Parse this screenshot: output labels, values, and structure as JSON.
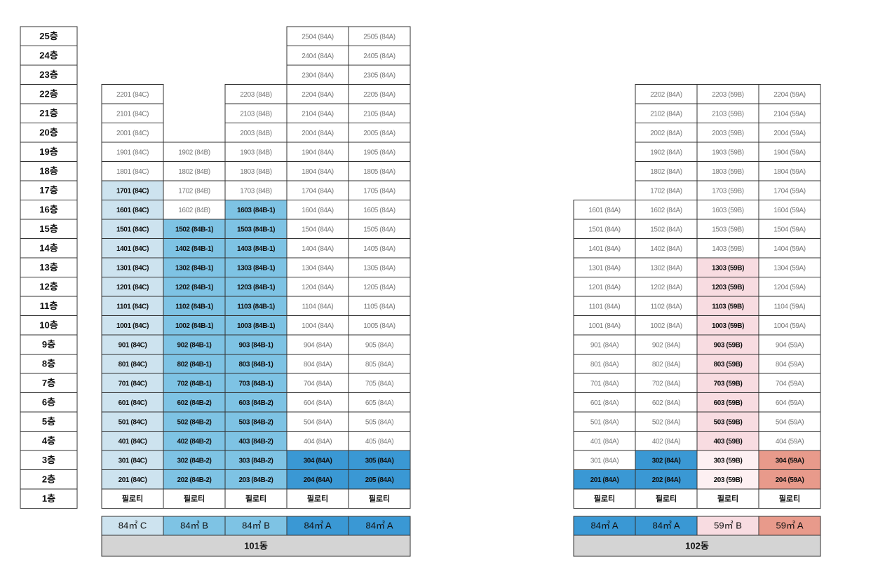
{
  "floors": [
    "25층",
    "24층",
    "23층",
    "22층",
    "21층",
    "20층",
    "19층",
    "18층",
    "17층",
    "16층",
    "15층",
    "14층",
    "13층",
    "12층",
    "11층",
    "10층",
    "9층",
    "8층",
    "7층",
    "6층",
    "5층",
    "4층",
    "3층",
    "2층",
    "1층"
  ],
  "buildings": [
    {
      "name": "101동",
      "columns": [
        {
          "type": {
            "text": "84㎡ C",
            "fill": "#cde3ef"
          },
          "cells": [
            {
              "text": "필로티"
            },
            {
              "text": "201 (84C)",
              "fill": "#cde3ef"
            },
            {
              "text": "301 (84C)",
              "fill": "#cde3ef"
            },
            {
              "text": "401 (84C)",
              "fill": "#cde3ef"
            },
            {
              "text": "501 (84C)",
              "fill": "#cde3ef"
            },
            {
              "text": "601 (84C)",
              "fill": "#cde3ef"
            },
            {
              "text": "701 (84C)",
              "fill": "#cde3ef"
            },
            {
              "text": "801 (84C)",
              "fill": "#cde3ef"
            },
            {
              "text": "901 (84C)",
              "fill": "#cde3ef"
            },
            {
              "text": "1001 (84C)",
              "fill": "#cde3ef"
            },
            {
              "text": "1101 (84C)",
              "fill": "#cde3ef"
            },
            {
              "text": "1201 (84C)",
              "fill": "#cde3ef"
            },
            {
              "text": "1301 (84C)",
              "fill": "#cde3ef"
            },
            {
              "text": "1401 (84C)",
              "fill": "#cde3ef"
            },
            {
              "text": "1501 (84C)",
              "fill": "#cde3ef"
            },
            {
              "text": "1601 (84C)",
              "fill": "#cde3ef"
            },
            {
              "text": "1701 (84C)",
              "fill": "#cde3ef"
            },
            {
              "text": "1801 (84C)"
            },
            {
              "text": "1901 (84C)"
            },
            {
              "text": "2001 (84C)"
            },
            {
              "text": "2101 (84C)"
            },
            {
              "text": "2201 (84C)"
            }
          ]
        },
        {
          "type": {
            "text": "84㎡ B",
            "fill": "#7ec3e4"
          },
          "cells": [
            {
              "text": "필로티"
            },
            {
              "text": "202 (84B-2)",
              "fill": "#7ec3e4"
            },
            {
              "text": "302 (84B-2)",
              "fill": "#7ec3e4"
            },
            {
              "text": "402 (84B-2)",
              "fill": "#7ec3e4"
            },
            {
              "text": "502 (84B-2)",
              "fill": "#7ec3e4"
            },
            {
              "text": "602 (84B-2)",
              "fill": "#7ec3e4"
            },
            {
              "text": "702 (84B-1)",
              "fill": "#7ec3e4"
            },
            {
              "text": "802 (84B-1)",
              "fill": "#7ec3e4"
            },
            {
              "text": "902 (84B-1)",
              "fill": "#7ec3e4"
            },
            {
              "text": "1002 (84B-1)",
              "fill": "#7ec3e4"
            },
            {
              "text": "1102 (84B-1)",
              "fill": "#7ec3e4"
            },
            {
              "text": "1202 (84B-1)",
              "fill": "#7ec3e4"
            },
            {
              "text": "1302 (84B-1)",
              "fill": "#7ec3e4"
            },
            {
              "text": "1402 (84B-1)",
              "fill": "#7ec3e4"
            },
            {
              "text": "1502 (84B-1)",
              "fill": "#7ec3e4"
            },
            {
              "text": "1602 (84B)"
            },
            {
              "text": "1702 (84B)"
            },
            {
              "text": "1802 (84B)"
            },
            {
              "text": "1902 (84B)"
            }
          ]
        },
        {
          "type": {
            "text": "84㎡ B",
            "fill": "#7ec3e4"
          },
          "cells": [
            {
              "text": "필로티"
            },
            {
              "text": "203 (84B-2)",
              "fill": "#7ec3e4"
            },
            {
              "text": "303 (84B-2)",
              "fill": "#7ec3e4"
            },
            {
              "text": "403 (84B-2)",
              "fill": "#7ec3e4"
            },
            {
              "text": "503 (84B-2)",
              "fill": "#7ec3e4"
            },
            {
              "text": "603 (84B-2)",
              "fill": "#7ec3e4"
            },
            {
              "text": "703 (84B-1)",
              "fill": "#7ec3e4"
            },
            {
              "text": "803 (84B-1)",
              "fill": "#7ec3e4"
            },
            {
              "text": "903 (84B-1)",
              "fill": "#7ec3e4"
            },
            {
              "text": "1003 (84B-1)",
              "fill": "#7ec3e4"
            },
            {
              "text": "1103 (84B-1)",
              "fill": "#7ec3e4"
            },
            {
              "text": "1203 (84B-1)",
              "fill": "#7ec3e4"
            },
            {
              "text": "1303 (84B-1)",
              "fill": "#7ec3e4"
            },
            {
              "text": "1403 (84B-1)",
              "fill": "#7ec3e4"
            },
            {
              "text": "1503 (84B-1)",
              "fill": "#7ec3e4"
            },
            {
              "text": "1603 (84B-1)",
              "fill": "#7ec3e4"
            },
            {
              "text": "1703 (84B)"
            },
            {
              "text": "1803 (84B)"
            },
            {
              "text": "1903 (84B)"
            },
            {
              "text": "2003 (84B)"
            },
            {
              "text": "2103 (84B)"
            },
            {
              "text": "2203 (84B)"
            }
          ]
        },
        {
          "type": {
            "text": "84㎡ A",
            "fill": "#3a98d4"
          },
          "cells": [
            {
              "text": "필로티"
            },
            {
              "text": "204 (84A)",
              "fill": "#3a98d4"
            },
            {
              "text": "304 (84A)",
              "fill": "#3a98d4"
            },
            {
              "text": "404 (84A)"
            },
            {
              "text": "504 (84A)"
            },
            {
              "text": "604 (84A)"
            },
            {
              "text": "704 (84A)"
            },
            {
              "text": "804 (84A)"
            },
            {
              "text": "904 (84A)"
            },
            {
              "text": "1004 (84A)"
            },
            {
              "text": "1104 (84A)"
            },
            {
              "text": "1204 (84A)"
            },
            {
              "text": "1304 (84A)"
            },
            {
              "text": "1404 (84A)"
            },
            {
              "text": "1504 (84A)"
            },
            {
              "text": "1604 (84A)"
            },
            {
              "text": "1704 (84A)"
            },
            {
              "text": "1804 (84A)"
            },
            {
              "text": "1904 (84A)"
            },
            {
              "text": "2004 (84A)"
            },
            {
              "text": "2104 (84A)"
            },
            {
              "text": "2204 (84A)"
            },
            {
              "text": "2304 (84A)"
            },
            {
              "text": "2404 (84A)"
            },
            {
              "text": "2504 (84A)"
            }
          ]
        },
        {
          "type": {
            "text": "84㎡ A",
            "fill": "#3a98d4"
          },
          "cells": [
            {
              "text": "필로티"
            },
            {
              "text": "205 (84A)",
              "fill": "#3a98d4"
            },
            {
              "text": "305 (84A)",
              "fill": "#3a98d4"
            },
            {
              "text": "405 (84A)"
            },
            {
              "text": "505 (84A)"
            },
            {
              "text": "605 (84A)"
            },
            {
              "text": "705 (84A)"
            },
            {
              "text": "805 (84A)"
            },
            {
              "text": "905 (84A)"
            },
            {
              "text": "1005 (84A)"
            },
            {
              "text": "1105 (84A)"
            },
            {
              "text": "1205 (84A)"
            },
            {
              "text": "1305 (84A)"
            },
            {
              "text": "1405 (84A)"
            },
            {
              "text": "1505 (84A)"
            },
            {
              "text": "1605 (84A)"
            },
            {
              "text": "1705 (84A)"
            },
            {
              "text": "1805 (84A)"
            },
            {
              "text": "1905 (84A)"
            },
            {
              "text": "2005 (84A)"
            },
            {
              "text": "2105 (84A)"
            },
            {
              "text": "2205 (84A)"
            },
            {
              "text": "2305 (84A)"
            },
            {
              "text": "2405 (84A)"
            },
            {
              "text": "2505 (84A)"
            }
          ]
        }
      ]
    },
    {
      "name": "102동",
      "columns": [
        {
          "type": {
            "text": "84㎡ A",
            "fill": "#3a98d4"
          },
          "cells": [
            {
              "text": "필로티"
            },
            {
              "text": "201 (84A)",
              "fill": "#3a98d4"
            },
            {
              "text": "301 (84A)"
            },
            {
              "text": "401 (84A)"
            },
            {
              "text": "501 (84A)"
            },
            {
              "text": "601 (84A)"
            },
            {
              "text": "701 (84A)"
            },
            {
              "text": "801 (84A)"
            },
            {
              "text": "901 (84A)"
            },
            {
              "text": "1001 (84A)"
            },
            {
              "text": "1101 (84A)"
            },
            {
              "text": "1201 (84A)"
            },
            {
              "text": "1301 (84A)"
            },
            {
              "text": "1401 (84A)"
            },
            {
              "text": "1501 (84A)"
            },
            {
              "text": "1601 (84A)"
            }
          ]
        },
        {
          "type": {
            "text": "84㎡ A",
            "fill": "#3a98d4"
          },
          "cells": [
            {
              "text": "필로티"
            },
            {
              "text": "202 (84A)",
              "fill": "#3a98d4"
            },
            {
              "text": "302 (84A)",
              "fill": "#3a98d4"
            },
            {
              "text": "402 (84A)"
            },
            {
              "text": "502 (84A)"
            },
            {
              "text": "602 (84A)"
            },
            {
              "text": "702 (84A)"
            },
            {
              "text": "802 (84A)"
            },
            {
              "text": "902 (84A)"
            },
            {
              "text": "1002 (84A)"
            },
            {
              "text": "1102 (84A)"
            },
            {
              "text": "1202 (84A)"
            },
            {
              "text": "1302 (84A)"
            },
            {
              "text": "1402 (84A)"
            },
            {
              "text": "1502 (84A)"
            },
            {
              "text": "1602 (84A)"
            },
            {
              "text": "1702 (84A)"
            },
            {
              "text": "1802 (84A)"
            },
            {
              "text": "1902 (84A)"
            },
            {
              "text": "2002 (84A)"
            },
            {
              "text": "2102 (84A)"
            },
            {
              "text": "2202 (84A)"
            }
          ]
        },
        {
          "type": {
            "text": "59㎡ B",
            "fill": "#f8dce1"
          },
          "cells": [
            {
              "text": "필로티"
            },
            {
              "text": "203 (59B)",
              "fill": "#fdf0f2"
            },
            {
              "text": "303 (59B)",
              "fill": "#fdf0f2"
            },
            {
              "text": "403 (59B)",
              "fill": "#f8dce1"
            },
            {
              "text": "503 (59B)",
              "fill": "#f8dce1"
            },
            {
              "text": "603 (59B)",
              "fill": "#f8dce1"
            },
            {
              "text": "703 (59B)",
              "fill": "#f8dce1"
            },
            {
              "text": "803 (59B)",
              "fill": "#f8dce1"
            },
            {
              "text": "903 (59B)",
              "fill": "#f8dce1"
            },
            {
              "text": "1003 (59B)",
              "fill": "#f8dce1"
            },
            {
              "text": "1103 (59B)",
              "fill": "#f8dce1"
            },
            {
              "text": "1203 (59B)",
              "fill": "#f8dce1"
            },
            {
              "text": "1303 (59B)",
              "fill": "#f8dce1"
            },
            {
              "text": "1403 (59B)"
            },
            {
              "text": "1503 (59B)"
            },
            {
              "text": "1603 (59B)"
            },
            {
              "text": "1703 (59B)"
            },
            {
              "text": "1803 (59B)"
            },
            {
              "text": "1903 (59B)"
            },
            {
              "text": "2003 (59B)"
            },
            {
              "text": "2103 (59B)"
            },
            {
              "text": "2203 (59B)"
            }
          ]
        },
        {
          "type": {
            "text": "59㎡ A",
            "fill": "#e89a8b"
          },
          "cells": [
            {
              "text": "필로티"
            },
            {
              "text": "204 (59A)",
              "fill": "#e89a8b"
            },
            {
              "text": "304 (59A)",
              "fill": "#e89a8b"
            },
            {
              "text": "404 (59A)"
            },
            {
              "text": "504 (59A)"
            },
            {
              "text": "604 (59A)"
            },
            {
              "text": "704 (59A)"
            },
            {
              "text": "804 (59A)"
            },
            {
              "text": "904 (59A)"
            },
            {
              "text": "1004 (59A)"
            },
            {
              "text": "1104 (59A)"
            },
            {
              "text": "1204 (59A)"
            },
            {
              "text": "1304 (59A)"
            },
            {
              "text": "1404 (59A)"
            },
            {
              "text": "1504 (59A)"
            },
            {
              "text": "1604 (59A)"
            },
            {
              "text": "1704 (59A)"
            },
            {
              "text": "1804 (59A)"
            },
            {
              "text": "1904 (59A)"
            },
            {
              "text": "2004 (59A)"
            },
            {
              "text": "2104 (59A)"
            },
            {
              "text": "2204 (59A)"
            }
          ]
        }
      ]
    }
  ]
}
